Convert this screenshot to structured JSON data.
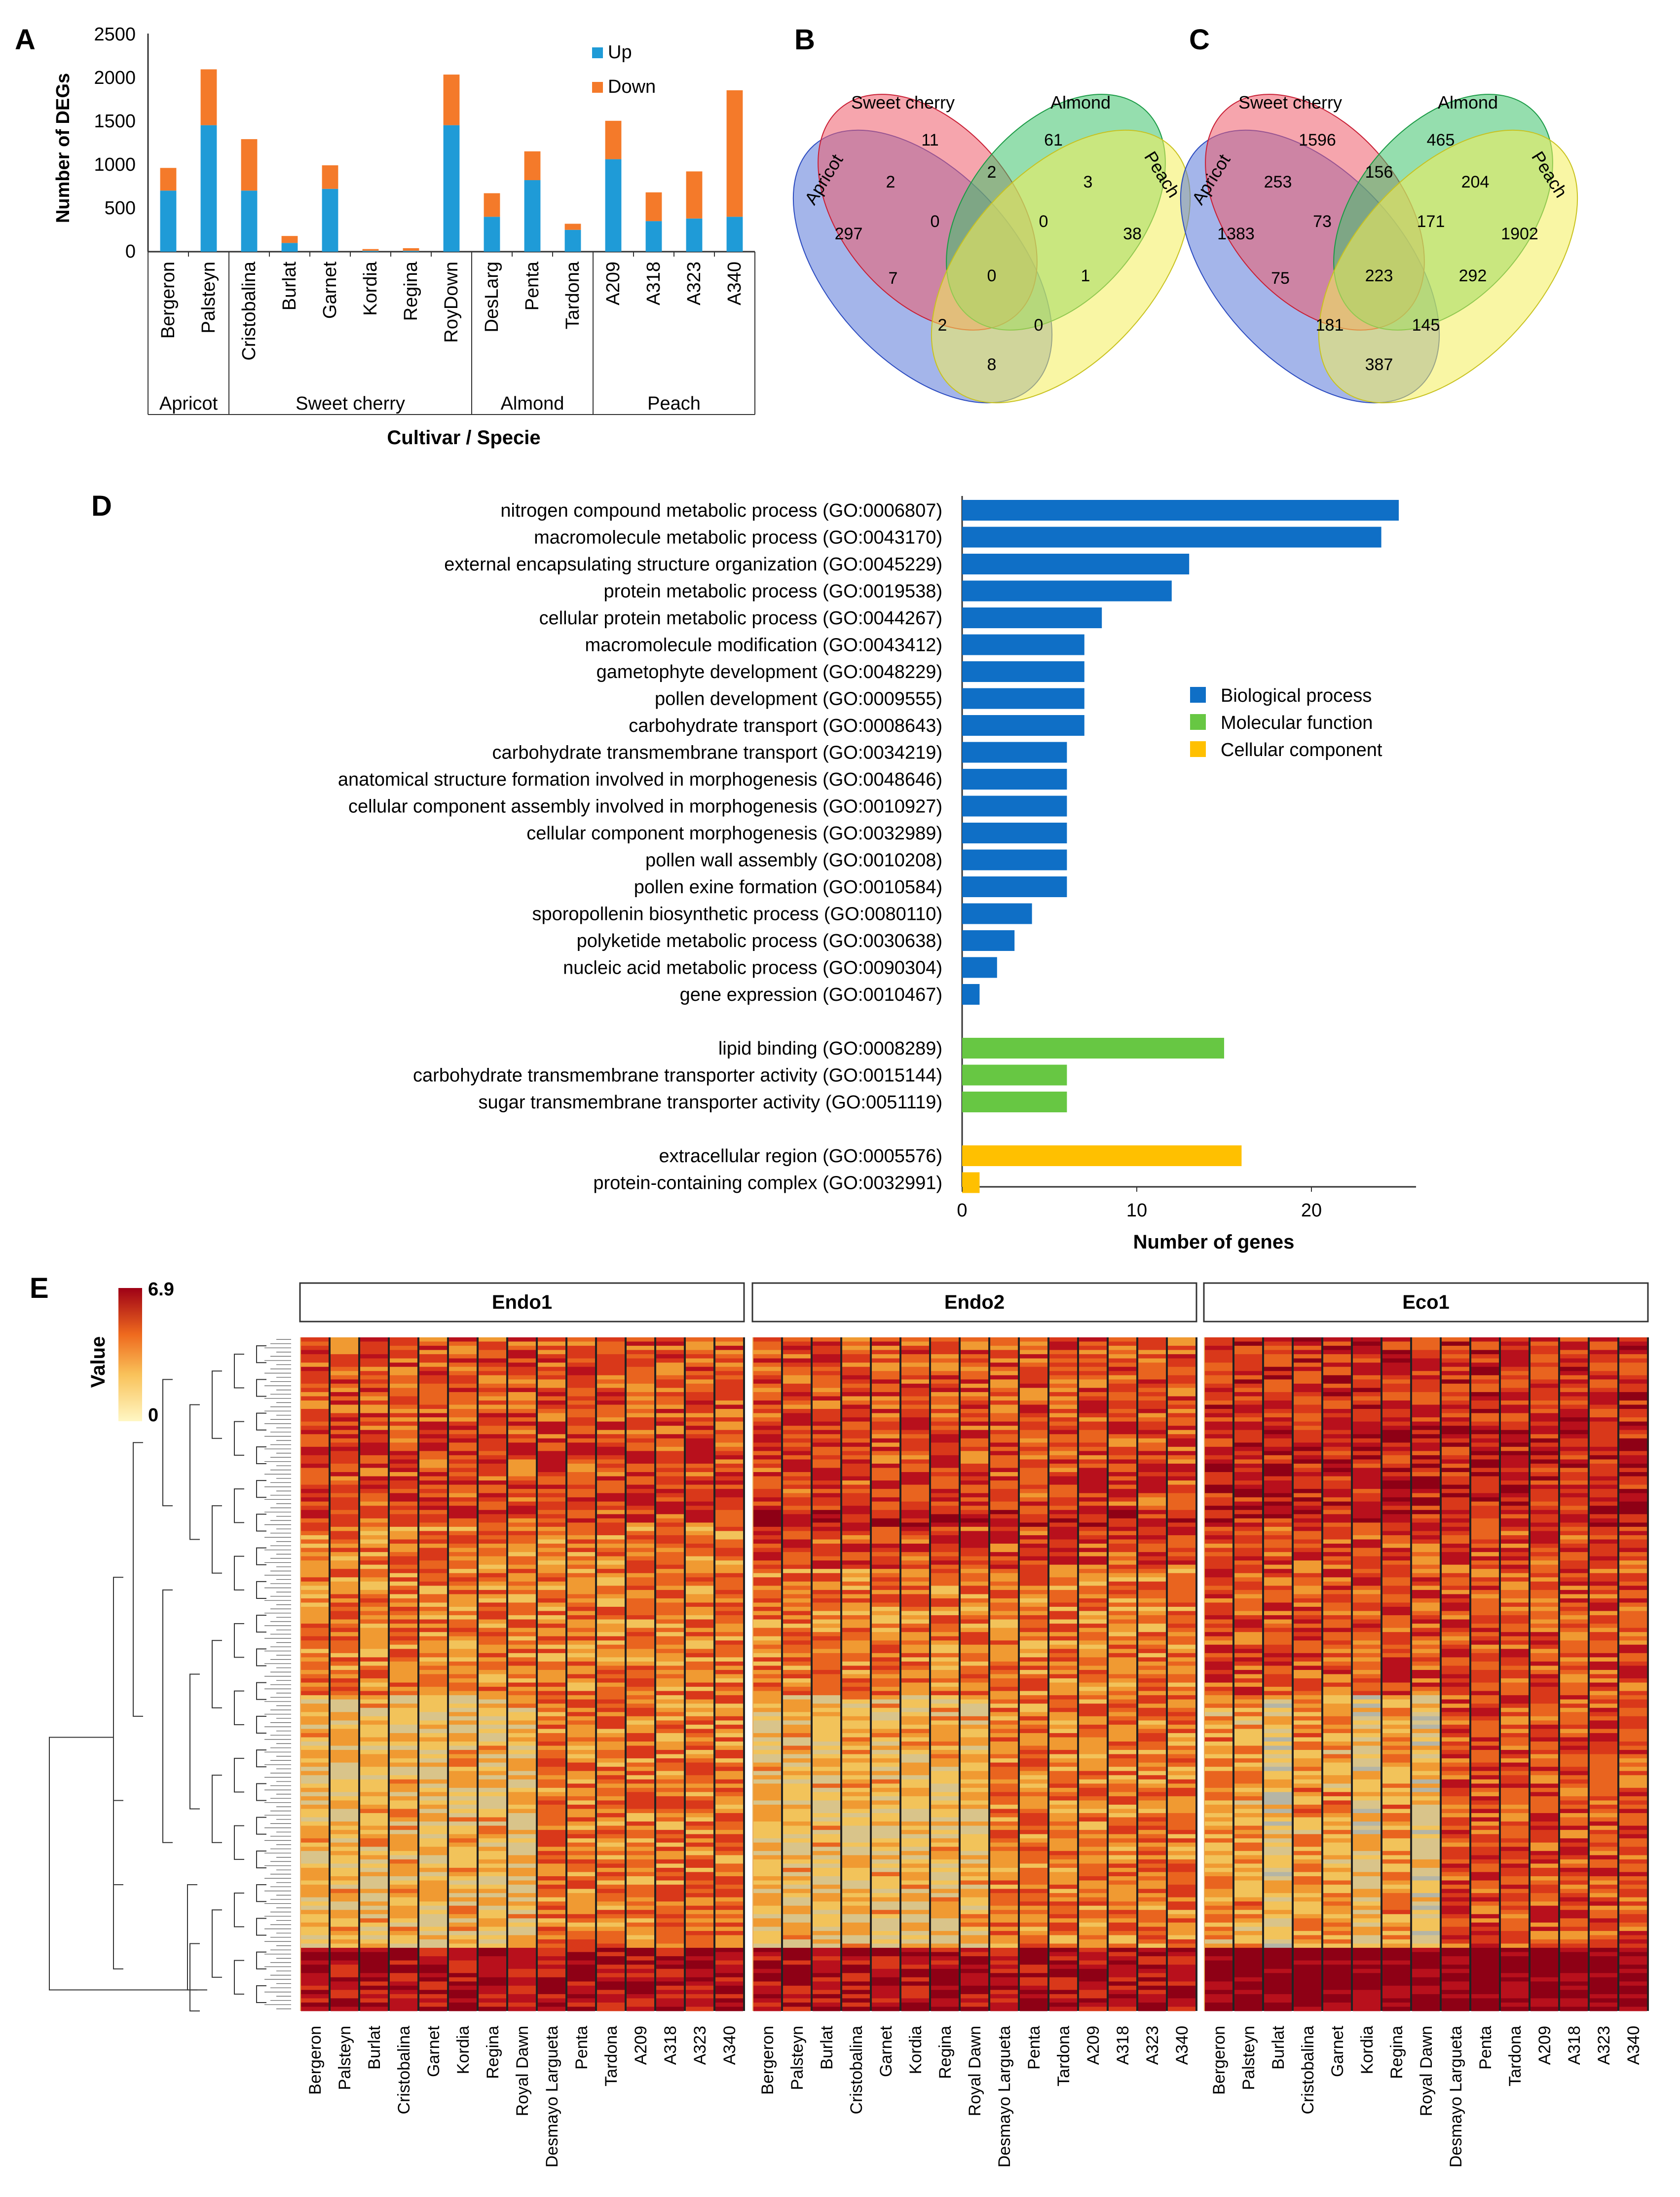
{
  "panels": {
    "A": "A",
    "B": "B",
    "C": "C",
    "D": "D",
    "E": "E"
  },
  "chart_data": [
    {
      "id": "A",
      "type": "bar",
      "stacked": true,
      "ylabel": "Number of DEGs",
      "xlabel": "Cultivar / Specie",
      "ylim": [
        0,
        2500
      ],
      "yticks": [
        "0",
        "500",
        "1000",
        "1500",
        "2000",
        "2500"
      ],
      "categories": [
        "Bergeron",
        "Palsteyn",
        "Cristobalina",
        "Burlat",
        "Garnet",
        "Kordia",
        "Regina",
        "RoyDown",
        "DesLarg",
        "Penta",
        "Tardona",
        "A209",
        "A318",
        "A323",
        "A340"
      ],
      "groups": [
        {
          "name": "Apricot",
          "count": 2
        },
        {
          "name": "Sweet cherry",
          "count": 6
        },
        {
          "name": "Almond",
          "count": 3
        },
        {
          "name": "Peach",
          "count": 4
        }
      ],
      "series": [
        {
          "name": "Up",
          "color": "#1f9bd7",
          "values": [
            700,
            1450,
            700,
            100,
            720,
            10,
            10,
            1450,
            400,
            820,
            250,
            1060,
            350,
            380,
            400
          ]
        },
        {
          "name": "Down",
          "color": "#f47a2a",
          "values": [
            260,
            640,
            590,
            80,
            270,
            20,
            30,
            580,
            270,
            330,
            70,
            440,
            330,
            540,
            1450
          ]
        }
      ],
      "legend": "top-right"
    },
    {
      "id": "B",
      "type": "venn",
      "sets": [
        "Apricot",
        "Sweet cherry",
        "Almond",
        "Peach"
      ],
      "regions": {
        "apricot_only": "297",
        "cherry_only": "11",
        "almond_only": "61",
        "peach_only": "38",
        "apr_cher": "2",
        "cher_alm": "2",
        "alm_pea": "3",
        "apr_alm": "7",
        "cher_pea": "1",
        "apr_pea": "8",
        "apr_cher_alm": "0",
        "cher_alm_pea": "0",
        "apr_alm_pea": "2",
        "apr_cher_pea": "0",
        "all": "0"
      }
    },
    {
      "id": "C",
      "type": "venn",
      "sets": [
        "Apricot",
        "Sweet cherry",
        "Almond",
        "Peach"
      ],
      "regions": {
        "apricot_only": "1383",
        "cherry_only": "1596",
        "almond_only": "465",
        "peach_only": "1902",
        "apr_cher": "253",
        "cher_alm": "156",
        "alm_pea": "204",
        "apr_alm": "75",
        "cher_pea": "292",
        "apr_pea": "387",
        "apr_cher_alm": "73",
        "cher_alm_pea": "171",
        "apr_alm_pea": "181",
        "apr_cher_pea": "145",
        "all": "223"
      }
    },
    {
      "id": "D",
      "type": "bar",
      "orientation": "horizontal",
      "xlabel": "Number of genes",
      "xlim": [
        0,
        26
      ],
      "xticks": [
        "0",
        "10",
        "20"
      ],
      "legend": [
        {
          "name": "Biological process",
          "color": "#0f6fc6"
        },
        {
          "name": "Molecular function",
          "color": "#67c743"
        },
        {
          "name": "Cellular component",
          "color": "#ffc000"
        }
      ],
      "categories": [
        {
          "label": "nitrogen compound metabolic process (GO:0006807)",
          "value": 25,
          "group": 0
        },
        {
          "label": "macromolecule metabolic process (GO:0043170)",
          "value": 24,
          "group": 0
        },
        {
          "label": "external encapsulating structure organization (GO:0045229)",
          "value": 13,
          "group": 0
        },
        {
          "label": "protein metabolic process (GO:0019538)",
          "value": 12,
          "group": 0
        },
        {
          "label": "cellular protein metabolic process (GO:0044267)",
          "value": 8,
          "group": 0
        },
        {
          "label": "macromolecule modification (GO:0043412)",
          "value": 7,
          "group": 0
        },
        {
          "label": "gametophyte development (GO:0048229)",
          "value": 7,
          "group": 0
        },
        {
          "label": "pollen development (GO:0009555)",
          "value": 7,
          "group": 0
        },
        {
          "label": "carbohydrate transport (GO:0008643)",
          "value": 7,
          "group": 0
        },
        {
          "label": "carbohydrate transmembrane transport (GO:0034219)",
          "value": 6,
          "group": 0
        },
        {
          "label": "anatomical structure formation involved in morphogenesis (GO:0048646)",
          "value": 6,
          "group": 0
        },
        {
          "label": "cellular component assembly involved in morphogenesis (GO:0010927)",
          "value": 6,
          "group": 0
        },
        {
          "label": "cellular component morphogenesis (GO:0032989)",
          "value": 6,
          "group": 0
        },
        {
          "label": "pollen wall assembly (GO:0010208)",
          "value": 6,
          "group": 0
        },
        {
          "label": "pollen exine formation (GO:0010584)",
          "value": 6,
          "group": 0
        },
        {
          "label": "sporopollenin biosynthetic process (GO:0080110)",
          "value": 4,
          "group": 0
        },
        {
          "label": "polyketide metabolic process (GO:0030638)",
          "value": 3,
          "group": 0
        },
        {
          "label": "nucleic acid metabolic process (GO:0090304)",
          "value": 2,
          "group": 0
        },
        {
          "label": "gene expression (GO:0010467)",
          "value": 1,
          "group": 0
        },
        {
          "label": "lipid binding (GO:0008289)",
          "value": 15,
          "group": 1
        },
        {
          "label": "carbohydrate transmembrane transporter activity (GO:0015144)",
          "value": 6,
          "group": 1
        },
        {
          "label": "sugar transmembrane transporter activity (GO:0051119)",
          "value": 6,
          "group": 1
        },
        {
          "label": "extracellular region (GO:0005576)",
          "value": 16,
          "group": 2
        },
        {
          "label": "protein-containing complex (GO:0032991)",
          "value": 1,
          "group": 2
        }
      ]
    },
    {
      "id": "E",
      "type": "heatmap",
      "colorbar": {
        "title": "Value",
        "max": "6.9",
        "min": "0"
      },
      "blocks": [
        "Endo1",
        "Endo2",
        "Eco1"
      ],
      "columns": [
        "Bergeron",
        "Palsteyn",
        "Burlat",
        "Cristobalina",
        "Garnet",
        "Kordia",
        "Regina",
        "Royal Dawn",
        "Desmayo Largueta",
        "Penta",
        "Tardona",
        "A209",
        "A318",
        "A323",
        "A340"
      ]
    }
  ]
}
